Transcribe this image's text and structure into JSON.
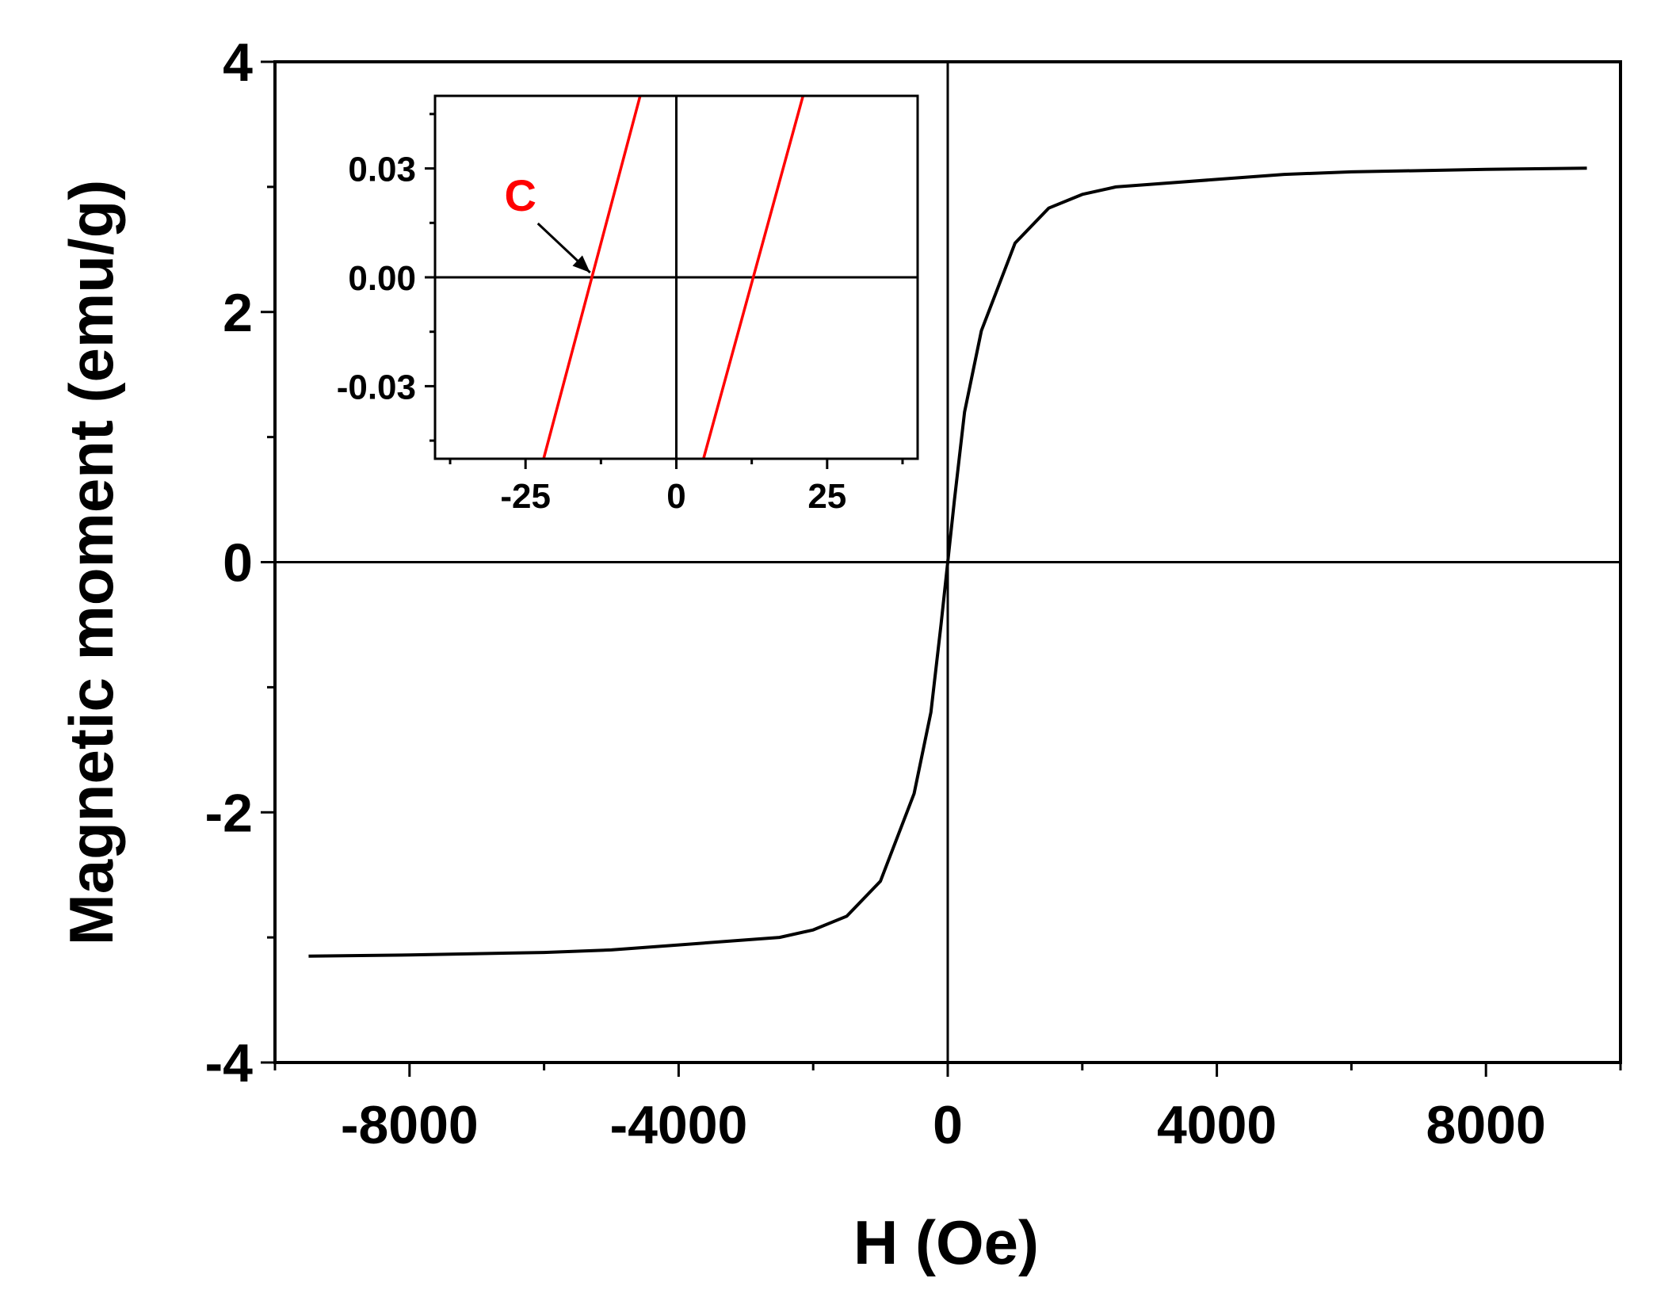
{
  "chart_data": [
    {
      "type": "line",
      "xlabel": "H (Oe)",
      "ylabel": "Magnetic moment (emu/g)",
      "xlim": [
        -10000,
        10000
      ],
      "ylim": [
        -4,
        4
      ],
      "x_ticks": [
        -8000,
        -4000,
        0,
        4000,
        8000
      ],
      "x_tick_labels": [
        "-8000",
        "-4000",
        "0",
        "4000",
        "8000"
      ],
      "y_ticks": [
        -4,
        -2,
        0,
        2,
        4
      ],
      "y_tick_labels": [
        "-4",
        "-2",
        "0",
        "2",
        "4"
      ],
      "grid": false,
      "colors": {
        "line": "#000000"
      },
      "series": [
        {
          "x": [
            -9500,
            -8000,
            -6000,
            -5000,
            -4000,
            -3000,
            -2500,
            -2000,
            -1500,
            -1000,
            -500,
            -250,
            -100,
            0,
            100,
            250,
            500,
            1000,
            1500,
            2000,
            2500,
            3000,
            4000,
            5000,
            6000,
            8000,
            9500
          ],
          "y": [
            -3.15,
            -3.14,
            -3.12,
            -3.1,
            -3.06,
            -3.02,
            -3.0,
            -2.94,
            -2.83,
            -2.55,
            -1.85,
            -1.2,
            -0.5,
            0.0,
            0.5,
            1.2,
            1.85,
            2.55,
            2.83,
            2.94,
            3.0,
            3.02,
            3.06,
            3.1,
            3.12,
            3.14,
            3.15
          ]
        }
      ]
    },
    {
      "type": "line",
      "xlim": [
        -40,
        40
      ],
      "ylim": [
        -0.05,
        0.05
      ],
      "x_ticks": [
        -25,
        0,
        25
      ],
      "x_tick_labels": [
        "-25",
        "0",
        "25"
      ],
      "y_ticks": [
        -0.03,
        0.0,
        0.03
      ],
      "y_tick_labels": [
        "-0.03",
        "0.00",
        "0.03"
      ],
      "grid": false,
      "colors": {
        "line": "#ff0000"
      },
      "series": [
        {
          "x": [
            -22,
            -6
          ],
          "y": [
            -0.05,
            0.05
          ]
        },
        {
          "x": [
            4.5,
            21
          ],
          "y": [
            -0.05,
            0.05
          ]
        }
      ],
      "annotations": [
        {
          "text": "C",
          "color": "#ff0000",
          "points_to": [
            -13.5,
            0.0
          ]
        }
      ]
    }
  ]
}
